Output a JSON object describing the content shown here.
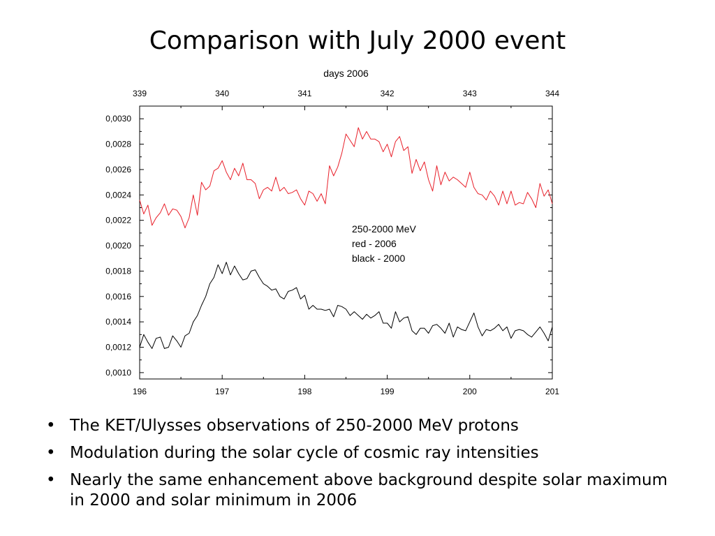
{
  "slide": {
    "title": "Comparison with July 2000 event",
    "bullet_symbol": "•",
    "bullets": [
      "The KET/Ulysses observations of 250-2000 MeV protons",
      "Modulation during the solar cycle of cosmic ray intensities",
      "Nearly the same enhancement above background despite solar maximum in 2000 and solar minimum in 2006"
    ]
  },
  "chart_data": {
    "type": "line",
    "title": "",
    "xlabel": "",
    "ylabel": "",
    "top_axis_label": "days 2006",
    "top_axis_ticks": [
      "339",
      "340",
      "341",
      "342",
      "343",
      "344"
    ],
    "top_axis_range": [
      339,
      344
    ],
    "xlim": [
      196,
      201
    ],
    "x_ticks": [
      "196",
      "197",
      "198",
      "199",
      "200",
      "201"
    ],
    "ylim": [
      0.00095,
      0.0031
    ],
    "y_ticks": [
      "0,0010",
      "0,0012",
      "0,0014",
      "0,0016",
      "0,0018",
      "0,0020",
      "0,0022",
      "0,0024",
      "0,0026",
      "0,0028",
      "0,0030"
    ],
    "y_tick_values": [
      0.001,
      0.0012,
      0.0014,
      0.0016,
      0.0018,
      0.002,
      0.0022,
      0.0024,
      0.0026,
      0.0028,
      0.003
    ],
    "annotation": [
      "250-2000 MeV",
      "red - 2006",
      "black - 2000"
    ],
    "grid": false,
    "colors": {
      "red_2006": "#e8202a",
      "black_2000": "#000000"
    },
    "series": [
      {
        "color": "#e8202a",
        "x": [
          196.0,
          196.05,
          196.1,
          196.15,
          196.2,
          196.25,
          196.3,
          196.35,
          196.4,
          196.45,
          196.5,
          196.55,
          196.6,
          196.65,
          196.7,
          196.75,
          196.8,
          196.85,
          196.9,
          196.95,
          197.0,
          197.05,
          197.1,
          197.15,
          197.2,
          197.25,
          197.3,
          197.35,
          197.4,
          197.45,
          197.5,
          197.55,
          197.6,
          197.65,
          197.7,
          197.75,
          197.8,
          197.85,
          197.9,
          197.95,
          198.0,
          198.05,
          198.1,
          198.15,
          198.2,
          198.25,
          198.3,
          198.35,
          198.4,
          198.45,
          198.5,
          198.55,
          198.6,
          198.65,
          198.7,
          198.75,
          198.8,
          198.85,
          198.9,
          198.95,
          199.0,
          199.05,
          199.1,
          199.15,
          199.2,
          199.25,
          199.3,
          199.35,
          199.4,
          199.45,
          199.5,
          199.55,
          199.6,
          199.65,
          199.7,
          199.75,
          199.8,
          199.85,
          199.9,
          199.95,
          200.0,
          200.05,
          200.1,
          200.15,
          200.2,
          200.25,
          200.3,
          200.35,
          200.4,
          200.45,
          200.5,
          200.55,
          200.6,
          200.65,
          200.7,
          200.75,
          200.8,
          200.85,
          200.9,
          200.95,
          201.0
        ],
        "y": [
          0.00236,
          0.00225,
          0.00232,
          0.00216,
          0.00222,
          0.00226,
          0.00233,
          0.00224,
          0.00229,
          0.00228,
          0.00223,
          0.00214,
          0.00222,
          0.0024,
          0.00224,
          0.0025,
          0.00244,
          0.00247,
          0.00259,
          0.00261,
          0.00267,
          0.00258,
          0.00252,
          0.00261,
          0.00255,
          0.00265,
          0.00252,
          0.00252,
          0.00249,
          0.00237,
          0.00244,
          0.00246,
          0.00243,
          0.00254,
          0.00243,
          0.00246,
          0.00241,
          0.00242,
          0.00244,
          0.00237,
          0.00232,
          0.00243,
          0.00241,
          0.00235,
          0.00241,
          0.00233,
          0.00263,
          0.00255,
          0.00262,
          0.00273,
          0.00288,
          0.00283,
          0.00278,
          0.00293,
          0.00284,
          0.0029,
          0.00284,
          0.00284,
          0.00282,
          0.00274,
          0.0028,
          0.0027,
          0.00282,
          0.00286,
          0.00275,
          0.00278,
          0.00257,
          0.00268,
          0.00259,
          0.00266,
          0.00252,
          0.00243,
          0.00263,
          0.00248,
          0.00258,
          0.00251,
          0.00254,
          0.00252,
          0.00249,
          0.00246,
          0.00258,
          0.00246,
          0.00241,
          0.0024,
          0.00236,
          0.00243,
          0.00239,
          0.00232,
          0.00243,
          0.00233,
          0.00243,
          0.00232,
          0.00234,
          0.00233,
          0.00242,
          0.00237,
          0.0023,
          0.00249,
          0.00239,
          0.00244,
          0.00233
        ]
      },
      {
        "color": "#000000",
        "x": [
          196.0,
          196.05,
          196.1,
          196.15,
          196.2,
          196.25,
          196.3,
          196.35,
          196.4,
          196.45,
          196.5,
          196.55,
          196.6,
          196.65,
          196.7,
          196.75,
          196.8,
          196.85,
          196.9,
          196.95,
          197.0,
          197.05,
          197.1,
          197.15,
          197.2,
          197.25,
          197.3,
          197.35,
          197.4,
          197.45,
          197.5,
          197.55,
          197.6,
          197.65,
          197.7,
          197.75,
          197.8,
          197.85,
          197.9,
          197.95,
          198.0,
          198.05,
          198.1,
          198.15,
          198.2,
          198.25,
          198.3,
          198.35,
          198.4,
          198.45,
          198.5,
          198.55,
          198.6,
          198.65,
          198.7,
          198.75,
          198.8,
          198.85,
          198.9,
          198.95,
          199.0,
          199.05,
          199.1,
          199.15,
          199.2,
          199.25,
          199.3,
          199.35,
          199.4,
          199.45,
          199.5,
          199.55,
          199.6,
          199.65,
          199.7,
          199.75,
          199.8,
          199.85,
          199.9,
          199.95,
          200.0,
          200.05,
          200.1,
          200.15,
          200.2,
          200.25,
          200.3,
          200.35,
          200.4,
          200.45,
          200.5,
          200.55,
          200.6,
          200.65,
          200.7,
          200.75,
          200.8,
          200.85,
          200.9,
          200.95,
          201.0
        ],
        "y": [
          0.0012,
          0.0013,
          0.00124,
          0.00119,
          0.00127,
          0.00128,
          0.00119,
          0.0012,
          0.00129,
          0.00125,
          0.0012,
          0.00129,
          0.00131,
          0.0014,
          0.00145,
          0.00153,
          0.0016,
          0.0017,
          0.00175,
          0.00185,
          0.00178,
          0.00187,
          0.00177,
          0.00184,
          0.00178,
          0.00173,
          0.00174,
          0.0018,
          0.00181,
          0.00175,
          0.0017,
          0.00168,
          0.00165,
          0.00166,
          0.0016,
          0.00158,
          0.00164,
          0.00165,
          0.00167,
          0.00158,
          0.00161,
          0.0015,
          0.00153,
          0.0015,
          0.0015,
          0.00149,
          0.0015,
          0.00144,
          0.00153,
          0.00152,
          0.0015,
          0.00145,
          0.00148,
          0.00145,
          0.00142,
          0.00146,
          0.00143,
          0.00145,
          0.00148,
          0.00139,
          0.00139,
          0.00135,
          0.00148,
          0.0014,
          0.00143,
          0.00144,
          0.00133,
          0.0013,
          0.00135,
          0.00135,
          0.00131,
          0.00137,
          0.00138,
          0.00135,
          0.00131,
          0.00139,
          0.00128,
          0.00136,
          0.00134,
          0.00133,
          0.0014,
          0.00147,
          0.00136,
          0.00129,
          0.00134,
          0.00133,
          0.00135,
          0.00138,
          0.00133,
          0.00136,
          0.00127,
          0.00133,
          0.00134,
          0.00133,
          0.0013,
          0.00128,
          0.00132,
          0.00136,
          0.00131,
          0.00125,
          0.00136
        ]
      }
    ]
  }
}
